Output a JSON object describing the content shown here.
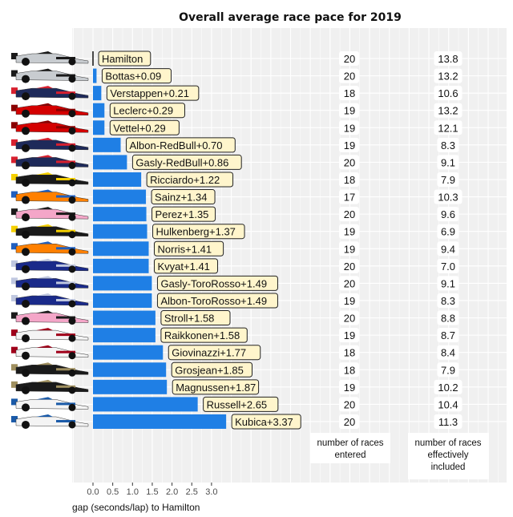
{
  "chart_data": {
    "type": "bar",
    "orientation": "horizontal",
    "title": "Overall average race pace for 2019",
    "xlabel": "gap (seconds/lap) to Hamilton",
    "xlim": [
      -0.5,
      11
    ],
    "x_ticks": [
      "0.0",
      "0.5",
      "1.0",
      "1.5",
      "2.0",
      "2.5",
      "3.0"
    ],
    "grid": true,
    "bar_color": "#1f7fe5",
    "label_fill": "#fff5cc",
    "panel_color": "#f0f0f0",
    "column_headers": [
      "number of races entered",
      "number of races effectively included"
    ],
    "rows": [
      {
        "label": "Hamilton",
        "gap": 0.0,
        "entered": "20",
        "included": "13.8",
        "team": "mercedes"
      },
      {
        "label": "Bottas+0.09",
        "gap": 0.09,
        "entered": "20",
        "included": "13.2",
        "team": "mercedes"
      },
      {
        "label": "Verstappen+0.21",
        "gap": 0.21,
        "entered": "18",
        "included": "10.6",
        "team": "redbull"
      },
      {
        "label": "Leclerc+0.29",
        "gap": 0.29,
        "entered": "19",
        "included": "13.2",
        "team": "ferrari"
      },
      {
        "label": "Vettel+0.29",
        "gap": 0.29,
        "entered": "19",
        "included": "12.1",
        "team": "ferrari"
      },
      {
        "label": "Albon-RedBull+0.70",
        "gap": 0.7,
        "entered": "19",
        "included": "8.3",
        "team": "redbull"
      },
      {
        "label": "Gasly-RedBull+0.86",
        "gap": 0.86,
        "entered": "20",
        "included": "9.1",
        "team": "redbull"
      },
      {
        "label": "Ricciardo+1.22",
        "gap": 1.22,
        "entered": "18",
        "included": "7.9",
        "team": "renault"
      },
      {
        "label": "Sainz+1.34",
        "gap": 1.34,
        "entered": "17",
        "included": "10.3",
        "team": "mclaren"
      },
      {
        "label": "Perez+1.35",
        "gap": 1.35,
        "entered": "20",
        "included": "9.6",
        "team": "racingpoint"
      },
      {
        "label": "Hulkenberg+1.37",
        "gap": 1.37,
        "entered": "19",
        "included": "6.9",
        "team": "renault"
      },
      {
        "label": "Norris+1.41",
        "gap": 1.41,
        "entered": "19",
        "included": "9.4",
        "team": "mclaren"
      },
      {
        "label": "Kvyat+1.41",
        "gap": 1.41,
        "entered": "20",
        "included": "7.0",
        "team": "tororosso"
      },
      {
        "label": "Gasly-ToroRosso+1.49",
        "gap": 1.49,
        "entered": "20",
        "included": "9.1",
        "team": "tororosso"
      },
      {
        "label": "Albon-ToroRosso+1.49",
        "gap": 1.49,
        "entered": "19",
        "included": "8.3",
        "team": "tororosso"
      },
      {
        "label": "Stroll+1.58",
        "gap": 1.58,
        "entered": "20",
        "included": "8.8",
        "team": "racingpoint"
      },
      {
        "label": "Raikkonen+1.58",
        "gap": 1.58,
        "entered": "19",
        "included": "8.7",
        "team": "alfaromeo"
      },
      {
        "label": "Giovinazzi+1.77",
        "gap": 1.77,
        "entered": "18",
        "included": "8.4",
        "team": "alfaromeo"
      },
      {
        "label": "Grosjean+1.85",
        "gap": 1.85,
        "entered": "18",
        "included": "7.9",
        "team": "haas"
      },
      {
        "label": "Magnussen+1.87",
        "gap": 1.87,
        "entered": "19",
        "included": "10.2",
        "team": "haas"
      },
      {
        "label": "Russell+2.65",
        "gap": 2.65,
        "entered": "20",
        "included": "10.4",
        "team": "williams"
      },
      {
        "label": "Kubica+3.37",
        "gap": 3.37,
        "entered": "20",
        "included": "11.3",
        "team": "williams"
      }
    ],
    "team_colors": {
      "mercedes": [
        "#c8ccd0",
        "#1a1a1a"
      ],
      "redbull": [
        "#1e2a5a",
        "#d8202f"
      ],
      "ferrari": [
        "#d40000",
        "#8a0000"
      ],
      "renault": [
        "#1a1a1a",
        "#f5d000"
      ],
      "mclaren": [
        "#ff8000",
        "#2060c0"
      ],
      "racingpoint": [
        "#f4a6c8",
        "#1a1a1a"
      ],
      "tororosso": [
        "#1a2a8a",
        "#c0c8e0"
      ],
      "alfaromeo": [
        "#f4f4f4",
        "#a0001a"
      ],
      "haas": [
        "#1a1a1a",
        "#a09060"
      ],
      "williams": [
        "#f4f4f4",
        "#1a5aa8"
      ]
    }
  }
}
